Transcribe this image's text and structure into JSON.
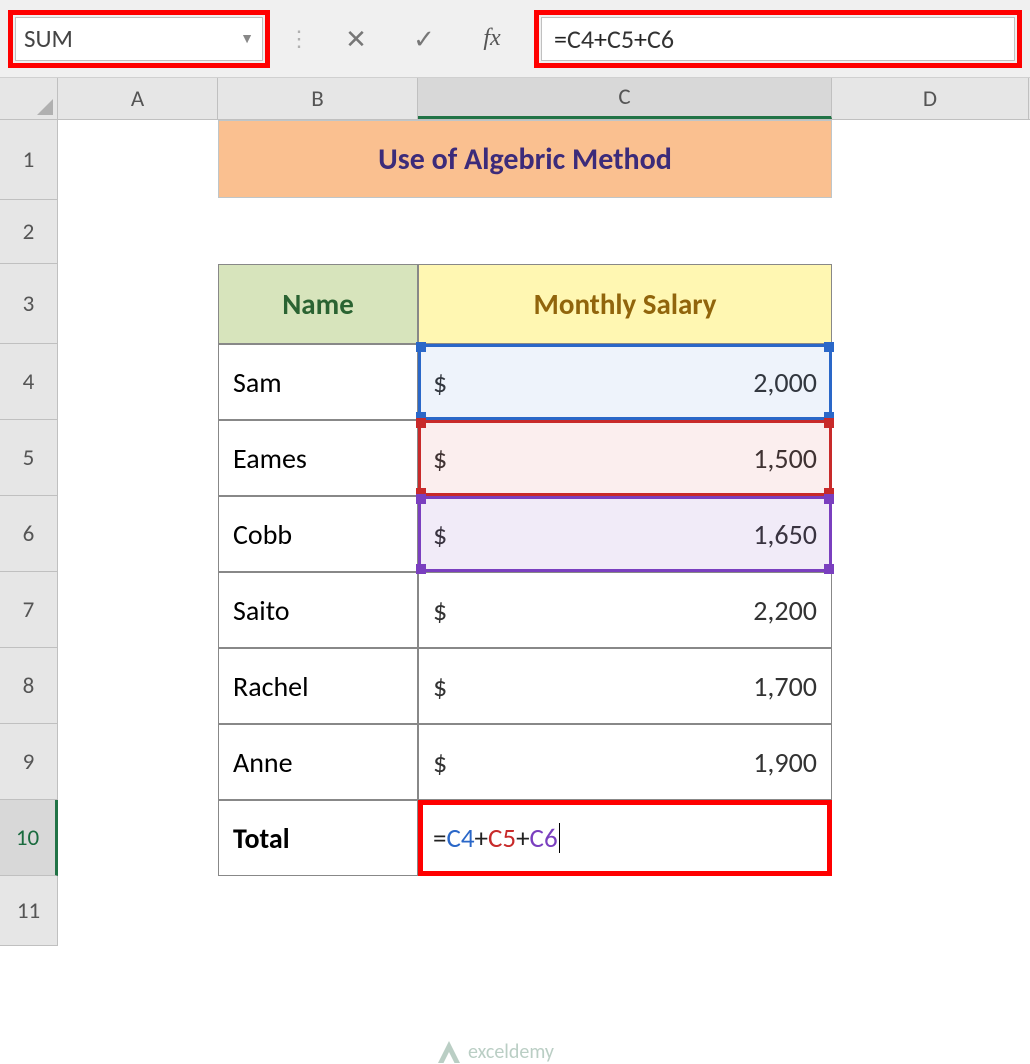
{
  "name_box": {
    "value": "SUM"
  },
  "formula_bar": {
    "cancel_glyph": "✕",
    "enter_glyph": "✓",
    "fx_glyph": "fx",
    "formula_prefix": "=",
    "ref1": "C4",
    "ref2": "C5",
    "ref3": "C6",
    "plus": "+"
  },
  "columns": {
    "A": "A",
    "B": "B",
    "C": "C",
    "D": "D"
  },
  "rows": {
    "r1": "1",
    "r2": "2",
    "r3": "3",
    "r4": "4",
    "r5": "5",
    "r6": "6",
    "r7": "7",
    "r8": "8",
    "r9": "9",
    "r10": "10",
    "r11": "11"
  },
  "title": "Use of Algebric Method",
  "headers": {
    "name": "Name",
    "salary": "Monthly Salary"
  },
  "data": [
    {
      "name": "Sam",
      "currency": "$",
      "amount": "2,000"
    },
    {
      "name": "Eames",
      "currency": "$",
      "amount": "1,500"
    },
    {
      "name": "Cobb",
      "currency": "$",
      "amount": "1,650"
    },
    {
      "name": "Saito",
      "currency": "$",
      "amount": "2,200"
    },
    {
      "name": "Rachel",
      "currency": "$",
      "amount": "1,700"
    },
    {
      "name": "Anne",
      "currency": "$",
      "amount": "1,900"
    }
  ],
  "total": {
    "label": "Total",
    "formula_prefix": "=",
    "ref1": "C4",
    "ref2": "C5",
    "ref3": "C6",
    "plus": "+"
  },
  "colors": {
    "highlight_border": "#ff0000",
    "ref1_color": "#2a67c8",
    "ref2_color": "#c82a2a",
    "ref3_color": "#7a3fbf",
    "title_bg": "#fac090",
    "title_fg": "#3c2b7a",
    "name_header_bg": "#d7e4bc",
    "name_header_fg": "#2a6332",
    "salary_header_bg": "#fff7b2",
    "salary_header_fg": "#91650c",
    "excel_green": "#217346"
  },
  "watermark": {
    "text": "exceldemy"
  }
}
